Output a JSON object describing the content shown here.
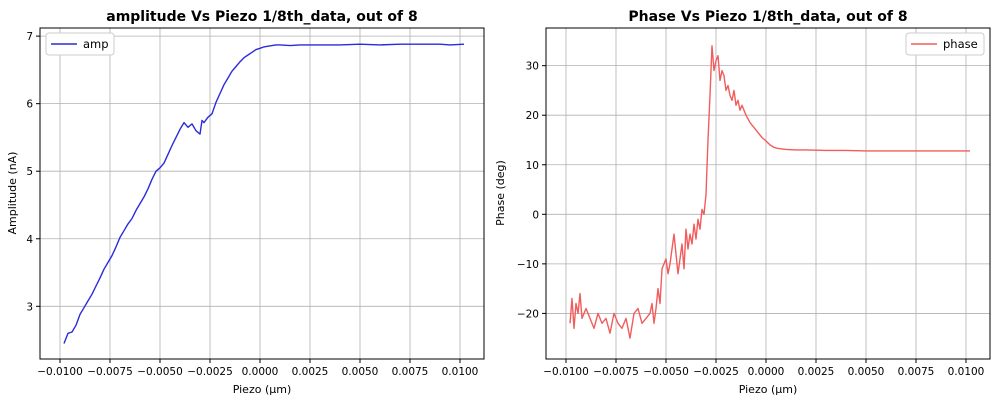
{
  "chart_data": [
    {
      "type": "line",
      "title": "amplitude Vs Piezo 1/8th_data, out of 8",
      "xlabel": "Piezo (μm)",
      "ylabel": "Amplitude (nA)",
      "xlim": [
        -0.011,
        0.0112
      ],
      "ylim": [
        2.22,
        7.12
      ],
      "xticks": [
        -0.01,
        -0.0075,
        -0.005,
        -0.0025,
        0.0,
        0.0025,
        0.005,
        0.0075,
        0.01
      ],
      "xtick_labels": [
        "−0.0100",
        "−0.0075",
        "−0.0050",
        "−0.0025",
        "0.0000",
        "0.0025",
        "0.0050",
        "0.0075",
        "0.0100"
      ],
      "yticks": [
        3,
        4,
        5,
        6,
        7
      ],
      "ytick_labels": [
        "3",
        "4",
        "5",
        "6",
        "7"
      ],
      "grid": true,
      "legend_position": "upper-left",
      "series": [
        {
          "name": "amp",
          "color": "#2b2bdc",
          "x": [
            -0.0098,
            -0.0096,
            -0.0094,
            -0.0092,
            -0.009,
            -0.0088,
            -0.0086,
            -0.0084,
            -0.0082,
            -0.008,
            -0.0078,
            -0.0076,
            -0.0074,
            -0.0072,
            -0.007,
            -0.0068,
            -0.0066,
            -0.0064,
            -0.0062,
            -0.006,
            -0.0058,
            -0.0056,
            -0.0054,
            -0.0052,
            -0.005,
            -0.0048,
            -0.0046,
            -0.0044,
            -0.0042,
            -0.004,
            -0.0038,
            -0.0036,
            -0.0034,
            -0.0032,
            -0.003,
            -0.0029,
            -0.0028,
            -0.0026,
            -0.0024,
            -0.0022,
            -0.002,
            -0.0018,
            -0.0016,
            -0.0014,
            -0.0012,
            -0.001,
            -0.0008,
            -0.0006,
            -0.0004,
            -0.0002,
            0.0,
            0.0002,
            0.0004,
            0.0006,
            0.0008,
            0.001,
            0.0015,
            0.002,
            0.003,
            0.004,
            0.005,
            0.006,
            0.007,
            0.008,
            0.009,
            0.0095,
            0.0102
          ],
          "y": [
            2.45,
            2.6,
            2.62,
            2.72,
            2.88,
            2.98,
            3.08,
            3.18,
            3.3,
            3.42,
            3.55,
            3.65,
            3.75,
            3.88,
            4.02,
            4.12,
            4.22,
            4.3,
            4.42,
            4.52,
            4.62,
            4.74,
            4.88,
            5.0,
            5.05,
            5.12,
            5.25,
            5.38,
            5.5,
            5.62,
            5.72,
            5.65,
            5.7,
            5.6,
            5.55,
            5.75,
            5.72,
            5.8,
            5.85,
            6.02,
            6.15,
            6.28,
            6.38,
            6.48,
            6.55,
            6.62,
            6.68,
            6.72,
            6.76,
            6.8,
            6.82,
            6.84,
            6.85,
            6.86,
            6.87,
            6.87,
            6.86,
            6.87,
            6.87,
            6.87,
            6.88,
            6.87,
            6.88,
            6.88,
            6.88,
            6.87,
            6.88
          ]
        }
      ]
    },
    {
      "type": "line",
      "title": "Phase Vs Piezo 1/8th_data, out of 8",
      "xlabel": "Piezo (μm)",
      "ylabel": "Phase (deg)",
      "xlim": [
        -0.011,
        0.0112
      ],
      "ylim": [
        -29.2,
        37.6
      ],
      "xticks": [
        -0.01,
        -0.0075,
        -0.005,
        -0.0025,
        0.0,
        0.0025,
        0.005,
        0.0075,
        0.01
      ],
      "xtick_labels": [
        "−0.0100",
        "−0.0075",
        "−0.0050",
        "−0.0025",
        "0.0000",
        "0.0025",
        "0.0050",
        "0.0075",
        "0.0100"
      ],
      "yticks": [
        -20,
        -10,
        0,
        10,
        20,
        30
      ],
      "ytick_labels": [
        "−20",
        "−10",
        "0",
        "10",
        "20",
        "30"
      ],
      "grid": true,
      "legend_position": "upper-right",
      "series": [
        {
          "name": "phase",
          "color": "#f25c5c",
          "x": [
            -0.0098,
            -0.0097,
            -0.0096,
            -0.0095,
            -0.0094,
            -0.0093,
            -0.0092,
            -0.009,
            -0.0088,
            -0.0086,
            -0.0084,
            -0.0082,
            -0.008,
            -0.0078,
            -0.0076,
            -0.0074,
            -0.0072,
            -0.007,
            -0.0068,
            -0.0066,
            -0.0064,
            -0.0062,
            -0.006,
            -0.0058,
            -0.0057,
            -0.0056,
            -0.0055,
            -0.0054,
            -0.0053,
            -0.0052,
            -0.005,
            -0.0049,
            -0.0048,
            -0.0047,
            -0.0046,
            -0.0045,
            -0.0044,
            -0.0043,
            -0.0042,
            -0.0041,
            -0.004,
            -0.0039,
            -0.0038,
            -0.0037,
            -0.0036,
            -0.0035,
            -0.0034,
            -0.0033,
            -0.0032,
            -0.0031,
            -0.003,
            -0.0029,
            -0.0028,
            -0.0027,
            -0.0026,
            -0.0025,
            -0.0024,
            -0.0023,
            -0.0022,
            -0.0021,
            -0.002,
            -0.0019,
            -0.0018,
            -0.0017,
            -0.0016,
            -0.0015,
            -0.0014,
            -0.0013,
            -0.0012,
            -0.0011,
            -0.001,
            -0.0008,
            -0.0006,
            -0.0004,
            -0.0002,
            0.0,
            0.0002,
            0.0004,
            0.0006,
            0.0008,
            0.001,
            0.0015,
            0.002,
            0.003,
            0.004,
            0.005,
            0.006,
            0.007,
            0.008,
            0.009,
            0.0102
          ],
          "y": [
            -22,
            -17,
            -23,
            -18,
            -20,
            -16,
            -21,
            -19,
            -21,
            -23,
            -20,
            -22,
            -21,
            -24,
            -20,
            -22,
            -23,
            -21,
            -25,
            -20,
            -19,
            -22,
            -21,
            -20,
            -18,
            -22,
            -19,
            -15,
            -18,
            -11,
            -9,
            -12,
            -10,
            -7,
            -4,
            -8,
            -12,
            -9,
            -6,
            -11,
            -3,
            -7,
            -4,
            -6,
            -2,
            -5,
            -1,
            -3,
            1,
            0,
            4,
            15,
            24,
            34,
            29,
            31,
            32,
            27,
            29,
            28,
            25,
            26,
            24,
            23,
            25,
            22,
            23,
            21,
            22,
            21,
            20,
            18.5,
            17.5,
            16.5,
            15.5,
            14.8,
            14.0,
            13.5,
            13.3,
            13.2,
            13.1,
            13.0,
            13.0,
            12.9,
            12.9,
            12.8,
            12.8,
            12.8,
            12.8,
            12.8,
            12.8
          ]
        }
      ]
    }
  ]
}
